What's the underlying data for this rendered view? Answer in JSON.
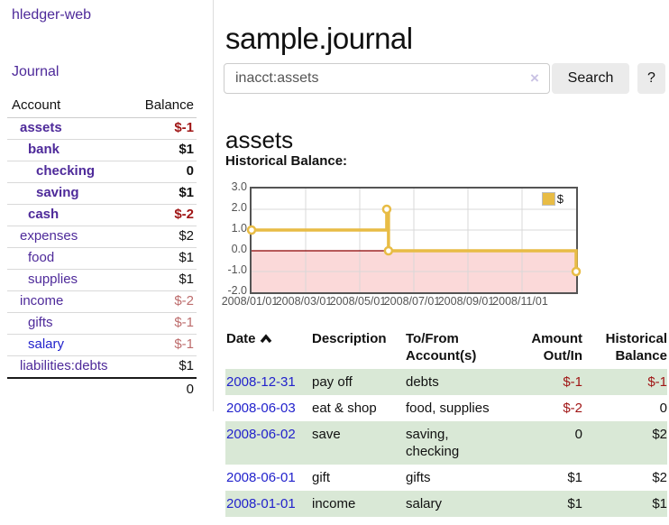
{
  "colors": {
    "link_purple": "#4e2a9a",
    "link_blue": "#2222cc",
    "negative_strong": "#a01616",
    "negative_muted": "#bd6c6c",
    "row_stripe_green": "#d9e8d6",
    "chart_series_yellow": "#e8bc45",
    "chart_negative_fill": "#fbd9d9",
    "chart_zero_line": "#8b0000"
  },
  "sidebar": {
    "brand": "hledger-web",
    "journal_link": "Journal",
    "account_header": "Account",
    "balance_header": "Balance",
    "rows": [
      {
        "account": "assets",
        "balance": "$-1",
        "indent": 1,
        "bold": true,
        "link_color": "purple",
        "balance_style": "neg"
      },
      {
        "account": "bank",
        "balance": "$1",
        "indent": 2,
        "bold": true,
        "link_color": "purple",
        "balance_style": "pos"
      },
      {
        "account": "checking",
        "balance": "0",
        "indent": 3,
        "bold": true,
        "link_color": "purple",
        "balance_style": "pos"
      },
      {
        "account": "saving",
        "balance": "$1",
        "indent": 3,
        "bold": true,
        "link_color": "purple",
        "balance_style": "pos"
      },
      {
        "account": "cash",
        "balance": "$-2",
        "indent": 2,
        "bold": true,
        "link_color": "purple",
        "balance_style": "neg"
      },
      {
        "account": "expenses",
        "balance": "$2",
        "indent": 1,
        "bold": false,
        "link_color": "purple",
        "balance_style": "pos"
      },
      {
        "account": "food",
        "balance": "$1",
        "indent": 2,
        "bold": false,
        "link_color": "purple",
        "balance_style": "pos"
      },
      {
        "account": "supplies",
        "balance": "$1",
        "indent": 2,
        "bold": false,
        "link_color": "purple",
        "balance_style": "pos"
      },
      {
        "account": "income",
        "balance": "$-2",
        "indent": 1,
        "bold": false,
        "link_color": "purple",
        "balance_style": "negmuted"
      },
      {
        "account": "gifts",
        "balance": "$-1",
        "indent": 2,
        "bold": false,
        "link_color": "purple",
        "balance_style": "negmuted"
      },
      {
        "account": "salary",
        "balance": "$-1",
        "indent": 2,
        "bold": false,
        "link_color": "blue",
        "balance_style": "negmuted"
      },
      {
        "account": "liabilities:debts",
        "balance": "$1",
        "indent": 1,
        "bold": false,
        "link_color": "purple",
        "balance_style": "pos"
      }
    ],
    "total": "0"
  },
  "main": {
    "title": "sample.journal",
    "search": {
      "value": "inacct:assets",
      "clear_icon": "×",
      "button_label": "Search",
      "help_label": "?"
    },
    "account_heading": "assets",
    "chart_label": "Historical Balance:"
  },
  "chart_data": {
    "type": "line",
    "title": "Historical Balance",
    "step": true,
    "series": [
      {
        "name": "$",
        "color": "#e8bc45",
        "points": [
          [
            "2008-01-01",
            1
          ],
          [
            "2008-06-01",
            2
          ],
          [
            "2008-06-03",
            0
          ],
          [
            "2008-12-31",
            -1
          ]
        ]
      }
    ],
    "ylim": [
      -2.0,
      3.0
    ],
    "yticks": [
      "3.0",
      "2.0",
      "1.0",
      "0.0",
      "-1.0",
      "-2.0"
    ],
    "ytick_values": [
      3,
      2,
      1,
      0,
      -1,
      -2
    ],
    "xticks": [
      "2008/01/01",
      "2008/03/01",
      "2008/05/01",
      "2008/07/01",
      "2008/09/01",
      "2008/11/01"
    ],
    "xrange_days": 365,
    "grid": true,
    "legend": {
      "label": "$",
      "position": "top-right"
    },
    "negative_region_shaded": true
  },
  "register": {
    "headers": {
      "date": "Date",
      "description": "Description",
      "accounts": "To/From Account(s)",
      "amount": "Amount Out/In",
      "balance": "Historical Balance"
    },
    "rows": [
      {
        "date": "2008-12-31",
        "description": "pay off",
        "accounts": "debts",
        "amount": "$-1",
        "amount_negative": true,
        "balance": "$-1",
        "balance_negative": true
      },
      {
        "date": "2008-06-03",
        "description": "eat & shop",
        "accounts": "food, supplies",
        "amount": "$-2",
        "amount_negative": true,
        "balance": "0",
        "balance_negative": false
      },
      {
        "date": "2008-06-02",
        "description": "save",
        "accounts": "saving, checking",
        "amount": "0",
        "amount_negative": false,
        "balance": "$2",
        "balance_negative": false
      },
      {
        "date": "2008-06-01",
        "description": "gift",
        "accounts": "gifts",
        "amount": "$1",
        "amount_negative": false,
        "balance": "$2",
        "balance_negative": false
      },
      {
        "date": "2008-01-01",
        "description": "income",
        "accounts": "salary",
        "amount": "$1",
        "amount_negative": false,
        "balance": "$1",
        "balance_negative": false
      }
    ]
  }
}
